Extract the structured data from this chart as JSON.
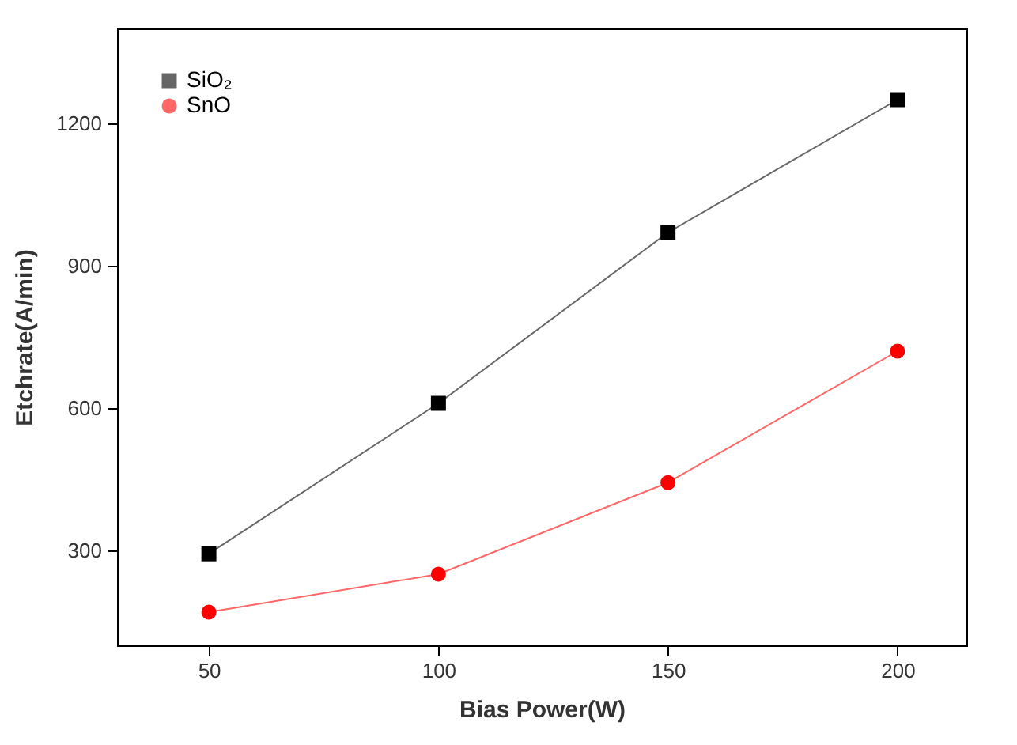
{
  "chart_data": {
    "type": "line",
    "xlabel": "Bias Power(W)",
    "ylabel": "Etchrate(A/min)",
    "x": [
      50,
      100,
      150,
      200
    ],
    "series": [
      {
        "name": "SiO₂",
        "color": "#000000",
        "marker": "square",
        "values": [
          293,
          610,
          970,
          1250
        ]
      },
      {
        "name": "SnO",
        "color": "#ff0000",
        "marker": "circle",
        "values": [
          170,
          250,
          443,
          720
        ]
      }
    ],
    "xlim": [
      30,
      215
    ],
    "xticks": [
      50,
      100,
      150,
      200
    ],
    "ylim": [
      100,
      1400
    ],
    "yticks": [
      300,
      600,
      900,
      1200
    ],
    "grid": false,
    "legend": "top left",
    "line_style": "solid"
  }
}
